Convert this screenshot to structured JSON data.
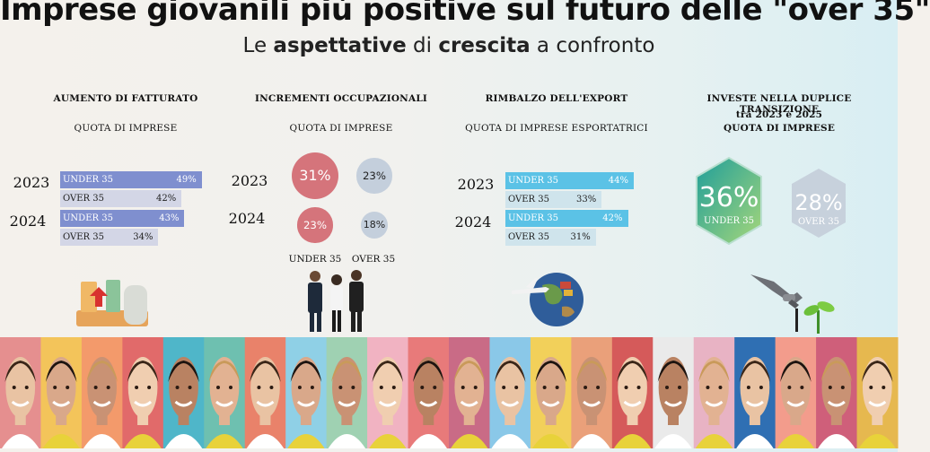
{
  "title": "Imprese giovanili più positive sul futuro delle \"over 35\"",
  "subtitle": {
    "p1": "Le ",
    "b1": "aspettative",
    "p2": " di ",
    "b2": "crescita",
    "p3": " a confronto"
  },
  "sections": {
    "fatturato": {
      "heading": "AUMENTO DI FATTURATO",
      "sub": "QUOTA DI IMPRESE"
    },
    "occupazione": {
      "heading": "INCREMENTI OCCUPAZIONALI",
      "sub": "QUOTA DI IMPRESE"
    },
    "export": {
      "heading": "RIMBALZO DELL'EXPORT",
      "sub": "QUOTA DI IMPRESE ESPORTATRICI"
    },
    "transizione": {
      "heading": "INVESTE NELLA DUPLICE TRANSIZIONE",
      "sub1": "tra 2023 e 2025",
      "sub2": "QUOTA DI IMPRESE"
    }
  },
  "labels": {
    "y2023": "2023",
    "y2024": "2024",
    "under": "UNDER 35",
    "over": "OVER 35"
  },
  "colors": {
    "fatturato_under": "#7f8fcf",
    "fatturato_over": "#d3d6e6",
    "occ_under": "#d5747b",
    "occ_over": "#c4cfdc",
    "export_under": "#5bc2e6",
    "export_over": "#cfe4ec",
    "hex_under_from": "#1f9e9a",
    "hex_under_to": "#9ed47c",
    "hex_over": "#c4cfdc"
  },
  "chart_data": [
    {
      "type": "bar",
      "title": "AUMENTO DI FATTURATO",
      "subtitle": "QUOTA DI IMPRESE",
      "categories": [
        "2023",
        "2024"
      ],
      "series": [
        {
          "name": "UNDER 35",
          "values": [
            49,
            43
          ],
          "labels": [
            "49%",
            "43%"
          ]
        },
        {
          "name": "OVER 35",
          "values": [
            42,
            34
          ],
          "labels": [
            "42%",
            "34%"
          ]
        }
      ]
    },
    {
      "type": "bubble",
      "title": "INCREMENTI OCCUPAZIONALI",
      "subtitle": "QUOTA DI IMPRESE",
      "categories": [
        "2023",
        "2024"
      ],
      "series": [
        {
          "name": "UNDER 35",
          "values": [
            31,
            23
          ],
          "labels": [
            "31%",
            "23%"
          ]
        },
        {
          "name": "OVER 35",
          "values": [
            23,
            18
          ],
          "labels": [
            "23%",
            "18%"
          ]
        }
      ]
    },
    {
      "type": "bar",
      "title": "RIMBALZO DELL'EXPORT",
      "subtitle": "QUOTA DI IMPRESE ESPORTATRICI",
      "categories": [
        "2023",
        "2024"
      ],
      "series": [
        {
          "name": "UNDER 35",
          "values": [
            44,
            42
          ],
          "labels": [
            "44%",
            "42%"
          ]
        },
        {
          "name": "OVER 35",
          "values": [
            33,
            31
          ],
          "labels": [
            "33%",
            "31%"
          ]
        }
      ]
    },
    {
      "type": "hexagon",
      "title": "INVESTE NELLA DUPLICE TRANSIZIONE",
      "subtitle": "tra 2023 e 2025 — QUOTA DI IMPRESE",
      "categories": [
        "UNDER 35",
        "OVER 35"
      ],
      "values": [
        36,
        28
      ],
      "labels": [
        "36%",
        "28%"
      ]
    }
  ],
  "photo_strip": {
    "tile_colors": [
      "#e58f8f",
      "#f3c45a",
      "#f39a6b",
      "#e16a6a",
      "#4fb6c9",
      "#6ec0b0",
      "#e9826a",
      "#8fd0e6",
      "#9fd1b2",
      "#f1b3c2",
      "#e87a7a",
      "#c96b86",
      "#8ac8e8",
      "#f2d05a",
      "#eaa07a",
      "#d55a5a",
      "#eaeaea",
      "#e8b3c4",
      "#2f6fb3",
      "#f39c8c",
      "#cf5f7a",
      "#e6b84f"
    ]
  }
}
